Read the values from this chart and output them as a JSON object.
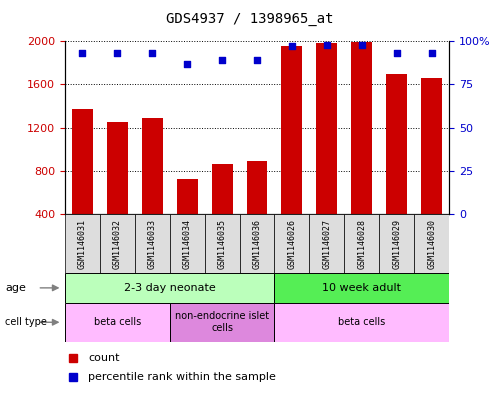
{
  "title": "GDS4937 / 1398965_at",
  "samples": [
    "GSM1146031",
    "GSM1146032",
    "GSM1146033",
    "GSM1146034",
    "GSM1146035",
    "GSM1146036",
    "GSM1146026",
    "GSM1146027",
    "GSM1146028",
    "GSM1146029",
    "GSM1146030"
  ],
  "counts": [
    1370,
    1250,
    1290,
    730,
    860,
    890,
    1960,
    1980,
    1990,
    1700,
    1660
  ],
  "percentile_ranks": [
    93,
    93,
    93,
    87,
    89,
    89,
    97,
    98,
    98,
    93,
    93
  ],
  "ylim_left": [
    400,
    2000
  ],
  "ylim_right": [
    0,
    100
  ],
  "yticks_left": [
    400,
    800,
    1200,
    1600,
    2000
  ],
  "yticks_right": [
    0,
    25,
    50,
    75,
    100
  ],
  "ytick_labels_right": [
    "0",
    "25",
    "50",
    "75",
    "100%"
  ],
  "bar_color": "#cc0000",
  "dot_color": "#0000cc",
  "age_groups": [
    {
      "label": "2-3 day neonate",
      "start": 0,
      "end": 6,
      "color": "#bbffbb"
    },
    {
      "label": "10 week adult",
      "start": 6,
      "end": 11,
      "color": "#55ee55"
    }
  ],
  "cell_type_groups": [
    {
      "label": "beta cells",
      "start": 0,
      "end": 3,
      "color": "#ffbbff"
    },
    {
      "label": "non-endocrine islet\ncells",
      "start": 3,
      "end": 6,
      "color": "#dd88dd"
    },
    {
      "label": "beta cells",
      "start": 6,
      "end": 11,
      "color": "#ffbbff"
    }
  ],
  "legend_count_color": "#cc0000",
  "legend_dot_color": "#0000cc",
  "tick_label_color_left": "#cc0000",
  "tick_label_color_right": "#0000cc",
  "sample_box_color": "#dddddd",
  "bar_width": 0.6,
  "title_fontsize": 10,
  "axis_fontsize": 8,
  "sample_fontsize": 6,
  "annot_fontsize": 8,
  "legend_fontsize": 8
}
